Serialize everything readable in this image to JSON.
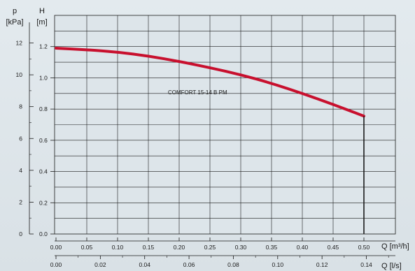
{
  "chart_data": {
    "type": "line",
    "annotation": "COMFORT 15-14 B PM",
    "left_axis_outer": {
      "symbol": "p",
      "unit": "[kPa]",
      "ticks": [
        "0",
        "2",
        "4",
        "6",
        "8",
        "10",
        "12"
      ]
    },
    "left_axis_inner": {
      "symbol": "H",
      "unit": "[m]",
      "ticks": [
        "0.0",
        "0.2",
        "0.4",
        "0.6",
        "0.8",
        "1.0",
        "1.2"
      ]
    },
    "x_axis_primary": {
      "label": "Q [m³/h]",
      "ticks": [
        "0.00",
        "0.05",
        "0.10",
        "0.15",
        "0.20",
        "0.25",
        "0.30",
        "0.35",
        "0.40",
        "0.45",
        "0.50"
      ]
    },
    "x_axis_secondary": {
      "label": "Q [l/s]",
      "ticks": [
        "0.00",
        "0.02",
        "0.04",
        "0.06",
        "0.08",
        "0.10",
        "0.12",
        "0.14"
      ]
    },
    "xlim": [
      0,
      0.5
    ],
    "ylim": [
      0,
      1.4
    ],
    "grid": true,
    "series": [
      {
        "color": "#c8102e",
        "x": [
          0.0,
          0.05,
          0.1,
          0.15,
          0.2,
          0.25,
          0.3,
          0.35,
          0.4,
          0.45,
          0.5
        ],
        "y": [
          1.19,
          1.18,
          1.165,
          1.14,
          1.105,
          1.065,
          1.02,
          0.965,
          0.9,
          0.83,
          0.755
        ]
      }
    ],
    "cutoff_line": {
      "x": 0.5,
      "y_top": 0.755,
      "color": "#1a1a1a"
    }
  }
}
